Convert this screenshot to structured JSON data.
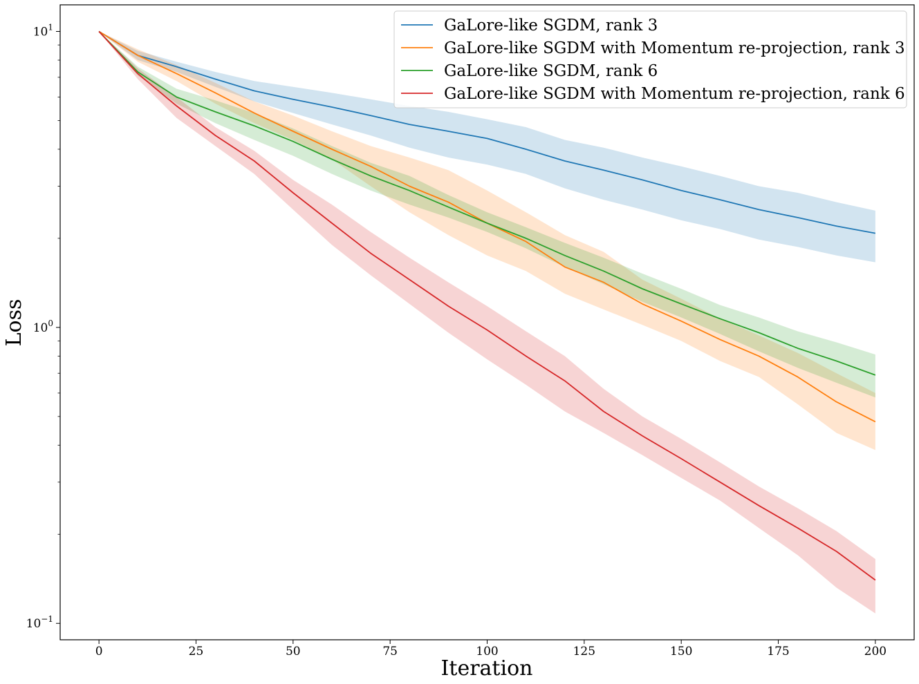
{
  "chart_data": {
    "type": "line",
    "title": "",
    "xlabel": "Iteration",
    "ylabel": "Loss",
    "yscale": "log",
    "xlim": [
      -10,
      210
    ],
    "ylim": [
      0.088,
      12.3
    ],
    "x_ticks": [
      0,
      25,
      50,
      75,
      100,
      125,
      150,
      175,
      200
    ],
    "x_tick_labels": [
      "0",
      "25",
      "50",
      "75",
      "100",
      "125",
      "150",
      "175",
      "200"
    ],
    "y_ticks": [
      {
        "value": 10,
        "base": "10",
        "exp": "1"
      },
      {
        "value": 1,
        "base": "10",
        "exp": "0"
      },
      {
        "value": 0.1,
        "base": "10",
        "exp": "−1"
      }
    ],
    "legend_position": "upper-right",
    "x": [
      0,
      10,
      20,
      30,
      40,
      50,
      60,
      70,
      80,
      90,
      100,
      110,
      120,
      130,
      140,
      150,
      160,
      170,
      180,
      190,
      200
    ],
    "series": [
      {
        "name": "GaLore-like SGDM, rank 3",
        "color": "#1f77b4",
        "mean": [
          10,
          8.3,
          7.6,
          6.9,
          6.3,
          5.9,
          5.55,
          5.2,
          4.85,
          4.6,
          4.35,
          4.0,
          3.65,
          3.4,
          3.15,
          2.9,
          2.7,
          2.5,
          2.35,
          2.2,
          2.08
        ],
        "lower": [
          10,
          8.0,
          7.3,
          6.5,
          5.8,
          5.3,
          4.85,
          4.45,
          4.05,
          3.75,
          3.55,
          3.3,
          2.95,
          2.7,
          2.5,
          2.3,
          2.15,
          1.98,
          1.87,
          1.75,
          1.66
        ],
        "upper": [
          10,
          8.6,
          7.9,
          7.3,
          6.8,
          6.5,
          6.2,
          5.9,
          5.6,
          5.35,
          5.05,
          4.75,
          4.3,
          4.05,
          3.75,
          3.5,
          3.25,
          3.0,
          2.85,
          2.65,
          2.48
        ]
      },
      {
        "name": " GaLore-like SGDM with Momentum re-projection, rank 3",
        "color": "#ff7f0e",
        "mean": [
          10,
          8.3,
          7.2,
          6.2,
          5.3,
          4.6,
          4.0,
          3.5,
          3.0,
          2.65,
          2.25,
          1.95,
          1.6,
          1.42,
          1.2,
          1.05,
          0.91,
          0.8,
          0.68,
          0.56,
          0.48
        ],
        "lower": [
          10,
          7.9,
          6.8,
          5.7,
          4.9,
          4.3,
          3.7,
          3.0,
          2.45,
          2.05,
          1.75,
          1.55,
          1.3,
          1.15,
          1.02,
          0.9,
          0.77,
          0.68,
          0.55,
          0.44,
          0.385
        ],
        "upper": [
          10,
          8.7,
          7.7,
          6.7,
          5.8,
          5.2,
          4.6,
          4.1,
          3.75,
          3.4,
          2.9,
          2.45,
          2.05,
          1.8,
          1.45,
          1.25,
          1.07,
          0.94,
          0.82,
          0.7,
          0.6
        ]
      },
      {
        "name": "GaLore-like SGDM, rank 6",
        "color": "#2ca02c",
        "mean": [
          10,
          7.3,
          6.0,
          5.35,
          4.8,
          4.25,
          3.7,
          3.25,
          2.9,
          2.55,
          2.25,
          2.0,
          1.75,
          1.55,
          1.35,
          1.2,
          1.07,
          0.96,
          0.85,
          0.77,
          0.69
        ],
        "lower": [
          10,
          7.1,
          5.7,
          4.9,
          4.3,
          3.8,
          3.3,
          2.9,
          2.6,
          2.35,
          2.1,
          1.85,
          1.6,
          1.4,
          1.22,
          1.08,
          0.95,
          0.83,
          0.73,
          0.65,
          0.58
        ],
        "upper": [
          10,
          7.6,
          6.4,
          5.85,
          5.3,
          4.7,
          4.1,
          3.6,
          3.25,
          2.8,
          2.45,
          2.18,
          1.93,
          1.72,
          1.52,
          1.35,
          1.19,
          1.08,
          0.97,
          0.89,
          0.81
        ]
      },
      {
        "name": " GaLore-like SGDM with Momentum re-projection, rank 6",
        "color": "#d62728",
        "mean": [
          10,
          7.2,
          5.6,
          4.45,
          3.65,
          2.85,
          2.25,
          1.78,
          1.45,
          1.18,
          0.98,
          0.8,
          0.66,
          0.52,
          0.43,
          0.36,
          0.3,
          0.25,
          0.21,
          0.175,
          0.14
        ],
        "lower": [
          10,
          6.9,
          5.1,
          4.1,
          3.3,
          2.5,
          1.9,
          1.5,
          1.2,
          0.96,
          0.78,
          0.64,
          0.52,
          0.44,
          0.37,
          0.31,
          0.26,
          0.21,
          0.17,
          0.132,
          0.108
        ],
        "upper": [
          10,
          7.5,
          6.0,
          4.75,
          3.95,
          3.15,
          2.6,
          2.1,
          1.72,
          1.42,
          1.18,
          0.97,
          0.8,
          0.62,
          0.5,
          0.42,
          0.35,
          0.29,
          0.245,
          0.205,
          0.165
        ]
      }
    ]
  }
}
